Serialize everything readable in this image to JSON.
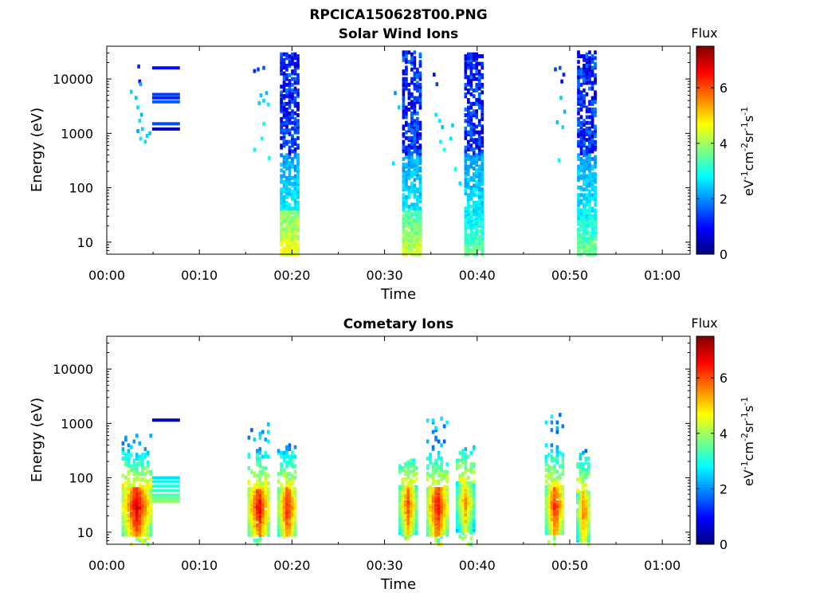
{
  "figure_title": "RPCICA150628T00.PNG",
  "chart_data": [
    {
      "type": "heatmap",
      "title": "Solar Wind Ions",
      "xlabel": "Time",
      "ylabel": "Energy (eV)",
      "x_ticks": [
        "00:00",
        "00:10",
        "00:20",
        "00:30",
        "00:40",
        "00:50",
        "01:00"
      ],
      "xlim_minutes": [
        0,
        63
      ],
      "y_ticks": [
        "10",
        "100",
        "1000",
        "10000"
      ],
      "y_scale": "log",
      "ylim": [
        6,
        40000
      ],
      "colorbar": {
        "title": "Flux",
        "ticks": [
          "0",
          "2",
          "4",
          "6"
        ],
        "range": [
          0,
          7.5
        ],
        "colormap": "jet"
      },
      "cells": [
        {
          "t": 3.3,
          "e": 17000,
          "v": 1.2
        },
        {
          "t": 3.4,
          "e": 9000,
          "v": 1.0
        },
        {
          "t": 3.5,
          "e": 8000,
          "v": 2.2
        },
        {
          "t": 2.5,
          "e": 5800,
          "v": 2.5
        },
        {
          "t": 3.0,
          "e": 4500,
          "v": 2.4
        },
        {
          "t": 3.2,
          "e": 3000,
          "v": 2.6
        },
        {
          "t": 3.6,
          "e": 2200,
          "v": 2.3
        },
        {
          "t": 3.4,
          "e": 1700,
          "v": 2.6
        },
        {
          "t": 3.7,
          "e": 1200,
          "v": 2.5
        },
        {
          "t": 3.5,
          "e": 800,
          "v": 2.7
        },
        {
          "t": 4.0,
          "e": 700,
          "v": 2.6
        },
        {
          "t": 4.2,
          "e": 900,
          "v": 2.5
        },
        {
          "t": 4.5,
          "e": 1000,
          "v": 2.4
        },
        {
          "t": 3.2,
          "e": 1100,
          "v": 2.2
        },
        {
          "t": 15.8,
          "e": 14000,
          "v": 1.2
        },
        {
          "t": 16.2,
          "e": 15000,
          "v": 1.4
        },
        {
          "t": 16.8,
          "e": 16000,
          "v": 1.6
        },
        {
          "t": 16.5,
          "e": 5000,
          "v": 2.4
        },
        {
          "t": 16.8,
          "e": 4000,
          "v": 2.6
        },
        {
          "t": 17.1,
          "e": 5500,
          "v": 2.3
        },
        {
          "t": 16.3,
          "e": 3600,
          "v": 2.5
        },
        {
          "t": 17.3,
          "e": 3400,
          "v": 2.7
        },
        {
          "t": 16.8,
          "e": 1500,
          "v": 2.9
        },
        {
          "t": 16.6,
          "e": 800,
          "v": 2.9
        },
        {
          "t": 15.8,
          "e": 500,
          "v": 2.8
        },
        {
          "t": 17.4,
          "e": 350,
          "v": 3.0
        },
        {
          "t": 31.0,
          "e": 5500,
          "v": 2.0
        },
        {
          "t": 30.8,
          "e": 280,
          "v": 2.6
        },
        {
          "t": 31.4,
          "e": 3000,
          "v": 2.5
        },
        {
          "t": 35.2,
          "e": 12000,
          "v": 1.0
        },
        {
          "t": 35.5,
          "e": 8000,
          "v": 1.4
        },
        {
          "t": 35.4,
          "e": 2200,
          "v": 2.6
        },
        {
          "t": 35.8,
          "e": 1700,
          "v": 2.7
        },
        {
          "t": 36.1,
          "e": 1300,
          "v": 2.4
        },
        {
          "t": 35.9,
          "e": 700,
          "v": 2.8
        },
        {
          "t": 36.3,
          "e": 500,
          "v": 3.0
        },
        {
          "t": 37.2,
          "e": 1400,
          "v": 2.5
        },
        {
          "t": 37.0,
          "e": 800,
          "v": 2.7
        },
        {
          "t": 37.5,
          "e": 220,
          "v": 2.9
        },
        {
          "t": 38.0,
          "e": 120,
          "v": 2.6
        },
        {
          "t": 48.3,
          "e": 15000,
          "v": 1.4
        },
        {
          "t": 48.8,
          "e": 16000,
          "v": 1.6
        },
        {
          "t": 49.2,
          "e": 12000,
          "v": 1.2
        },
        {
          "t": 49.0,
          "e": 9000,
          "v": 1.0
        },
        {
          "t": 48.9,
          "e": 4500,
          "v": 2.5
        },
        {
          "t": 49.3,
          "e": 2500,
          "v": 2.3
        },
        {
          "t": 48.5,
          "e": 1600,
          "v": 2.4
        },
        {
          "t": 49.1,
          "e": 1300,
          "v": 2.6
        },
        {
          "t": 48.7,
          "e": 320,
          "v": 2.8
        }
      ],
      "bursts": [
        {
          "t0": 18.7,
          "t1": 20.7,
          "emax": 30000,
          "lowflux": 4.2
        },
        {
          "t0": 31.9,
          "t1": 33.7,
          "emax": 33000,
          "lowflux": 3.9
        },
        {
          "t0": 38.6,
          "t1": 40.4,
          "emax": 30000,
          "lowflux": 3.2
        },
        {
          "t0": 50.8,
          "t1": 52.6,
          "emax": 32000,
          "lowflux": 3.3
        }
      ],
      "lines": [
        {
          "t0": 4.9,
          "t1": 7.9,
          "e": 16000,
          "v": 1.0
        },
        {
          "t0": 4.9,
          "t1": 7.9,
          "e": 5200,
          "v": 1.4
        },
        {
          "t0": 4.9,
          "t1": 7.9,
          "e": 4500,
          "v": 1.2
        },
        {
          "t0": 4.9,
          "t1": 7.9,
          "e": 3800,
          "v": 1.6
        },
        {
          "t0": 4.9,
          "t1": 7.9,
          "e": 1500,
          "v": 1.5
        },
        {
          "t0": 4.9,
          "t1": 7.9,
          "e": 1200,
          "v": 0.4
        }
      ]
    },
    {
      "type": "heatmap",
      "title": "Cometary Ions",
      "xlabel": "Time",
      "ylabel": "Energy (eV)",
      "x_ticks": [
        "00:00",
        "00:10",
        "00:20",
        "00:30",
        "00:40",
        "00:50",
        "01:00"
      ],
      "xlim_minutes": [
        0,
        63
      ],
      "y_ticks": [
        "10",
        "100",
        "1000",
        "10000"
      ],
      "y_scale": "log",
      "ylim": [
        6,
        40000
      ],
      "colorbar": {
        "title": "Flux",
        "ticks": [
          "0",
          "2",
          "4",
          "6"
        ],
        "range": [
          0,
          7.5
        ],
        "colormap": "jet"
      },
      "clusters": [
        {
          "tc": 3.1,
          "w": 3.0,
          "epeak": 30,
          "vmax": 7.0,
          "emax": 600
        },
        {
          "tc": 16.3,
          "w": 2.2,
          "epeak": 30,
          "vmax": 6.9,
          "emax": 1100
        },
        {
          "tc": 19.4,
          "w": 2.0,
          "epeak": 30,
          "vmax": 6.6,
          "emax": 400
        },
        {
          "tc": 32.4,
          "w": 1.8,
          "epeak": 32,
          "vmax": 6.2,
          "emax": 220
        },
        {
          "tc": 35.6,
          "w": 2.2,
          "epeak": 30,
          "vmax": 6.8,
          "emax": 1400
        },
        {
          "tc": 38.6,
          "w": 1.8,
          "epeak": 36,
          "vmax": 5.6,
          "emax": 400
        },
        {
          "tc": 48.3,
          "w": 2.0,
          "epeak": 32,
          "vmax": 6.5,
          "emax": 1600
        },
        {
          "tc": 51.4,
          "w": 1.4,
          "epeak": 25,
          "vmax": 5.9,
          "emax": 330
        }
      ],
      "lines": [
        {
          "t0": 4.9,
          "t1": 7.9,
          "e": 1150,
          "v": 0.4
        },
        {
          "t0": 4.9,
          "t1": 7.9,
          "e": 100,
          "v": 2.6
        },
        {
          "t0": 4.9,
          "t1": 7.9,
          "e": 85,
          "v": 2.8
        },
        {
          "t0": 4.9,
          "t1": 7.9,
          "e": 70,
          "v": 3.0
        },
        {
          "t0": 4.9,
          "t1": 7.9,
          "e": 58,
          "v": 3.2
        },
        {
          "t0": 4.9,
          "t1": 7.9,
          "e": 48,
          "v": 3.4
        },
        {
          "t0": 4.9,
          "t1": 7.9,
          "e": 42,
          "v": 3.6
        },
        {
          "t0": 4.9,
          "t1": 7.9,
          "e": 37,
          "v": 3.9
        }
      ]
    }
  ]
}
